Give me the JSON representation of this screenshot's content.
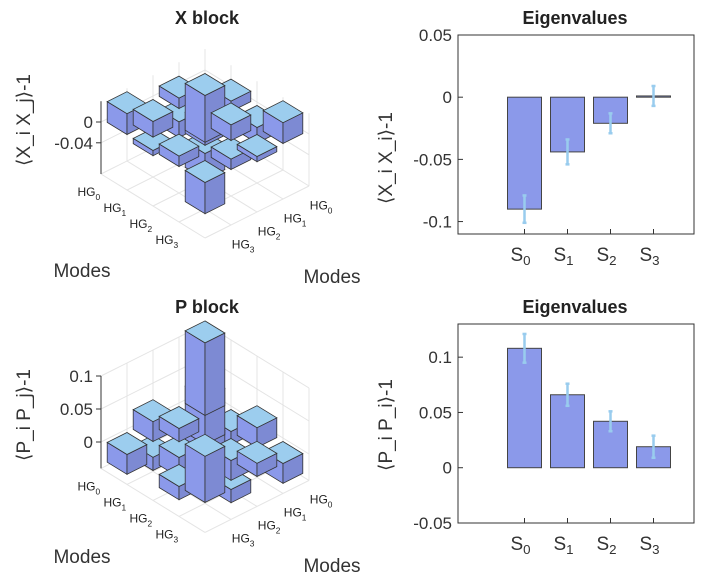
{
  "chart_data": [
    {
      "type": "bar3d",
      "title": "X block",
      "zlabel": "⟨X_i X_j⟩-1",
      "xlabel": "Modes",
      "ylabel": "Modes",
      "z_ticks": [
        "0",
        "-0.04"
      ],
      "row_ticks": [
        "HG0",
        "HG1",
        "HG2",
        "HG3"
      ],
      "col_ticks": [
        "HG0",
        "HG1",
        "HG2",
        "HG3"
      ],
      "matrix": [
        [
          -0.09,
          0.02,
          -0.03,
          0.04
        ],
        [
          0.02,
          -0.04,
          0.03,
          -0.01
        ],
        [
          -0.03,
          0.03,
          -0.05,
          0.02
        ],
        [
          0.04,
          -0.01,
          0.02,
          -0.06
        ]
      ]
    },
    {
      "type": "bar",
      "title": "Eigenvalues",
      "ylabel": "⟨X_i X_i⟩-1",
      "ylim": [
        -0.11,
        0.05
      ],
      "y_ticks": [
        "0.05",
        "0",
        "-0.05",
        "-0.1"
      ],
      "y_tick_values": [
        0.05,
        0,
        -0.05,
        -0.1
      ],
      "categories": [
        "S0",
        "S1",
        "S2",
        "S3"
      ],
      "values": [
        -0.09,
        -0.044,
        -0.021,
        0.001
      ],
      "errors": [
        0.011,
        0.01,
        0.008,
        0.008
      ]
    },
    {
      "type": "bar3d",
      "title": "P block",
      "zlabel": "⟨P_i P_j⟩-1",
      "xlabel": "Modes",
      "ylabel": "Modes",
      "z_ticks": [
        "0.1",
        "0.05",
        "0"
      ],
      "row_ticks": [
        "HG0",
        "HG1",
        "HG2",
        "HG3"
      ],
      "col_ticks": [
        "HG0",
        "HG1",
        "HG2",
        "HG3"
      ],
      "matrix": [
        [
          0.11,
          -0.02,
          0.03,
          -0.03
        ],
        [
          -0.02,
          0.07,
          -0.03,
          0.02
        ],
        [
          0.03,
          -0.03,
          0.05,
          -0.02
        ],
        [
          -0.03,
          0.02,
          -0.02,
          0.07
        ]
      ]
    },
    {
      "type": "bar",
      "title": "Eigenvalues",
      "ylabel": "⟨P_i P_i⟩-1",
      "ylim": [
        -0.05,
        0.13
      ],
      "y_ticks": [
        "0.1",
        "0.05",
        "0",
        "-0.05"
      ],
      "y_tick_values": [
        0.1,
        0.05,
        0,
        -0.05
      ],
      "categories": [
        "S0",
        "S1",
        "S2",
        "S3"
      ],
      "values": [
        0.108,
        0.066,
        0.042,
        0.019
      ],
      "errors": [
        0.013,
        0.01,
        0.009,
        0.01
      ]
    }
  ]
}
